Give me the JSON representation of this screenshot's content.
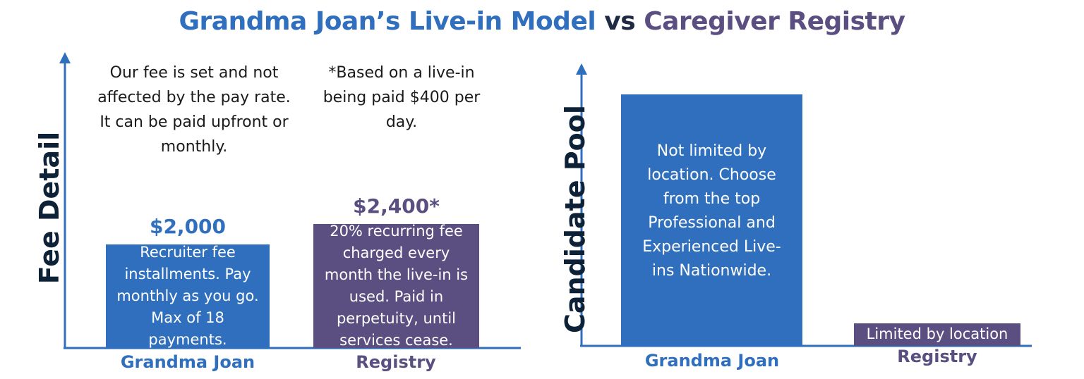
{
  "title": {
    "part1": "Grandma Joan’s Live-in Model",
    "part2": "vs",
    "part3": "Caregiver Registry"
  },
  "colors": {
    "blue": "#2f6fbd",
    "purple": "#5a4f80",
    "axis": "#2f6fbd",
    "dark": "#0d2137"
  },
  "chart_data": [
    {
      "type": "bar",
      "title": "",
      "ylabel": "Fee Detail",
      "categories": [
        "Grandma Joan",
        "Registry"
      ],
      "values": [
        2000,
        2400
      ],
      "ylim": [
        0,
        5500
      ],
      "value_labels": [
        "$2,000",
        "$2,400*"
      ],
      "bar_text": [
        "Recruiter fee installments. Pay monthly as you go. Max of 18 payments.",
        "20% recurring fee charged every month the live-in is used. Paid in perpetuity, until services cease."
      ],
      "notes": [
        "Our fee is set and not affected by the pay rate. It can be paid upfront or monthly.",
        "*Based on a live-in being paid $400 per day."
      ]
    },
    {
      "type": "bar",
      "title": "",
      "ylabel": "Candidate Pool",
      "categories": [
        "Grandma Joan",
        "Registry"
      ],
      "values": [
        100,
        9
      ],
      "ylim": [
        0,
        110
      ],
      "bar_text": [
        "Not limited by location. Choose from the top Professional and Experienced Live-ins Nationwide.",
        "Limited by location"
      ]
    }
  ]
}
